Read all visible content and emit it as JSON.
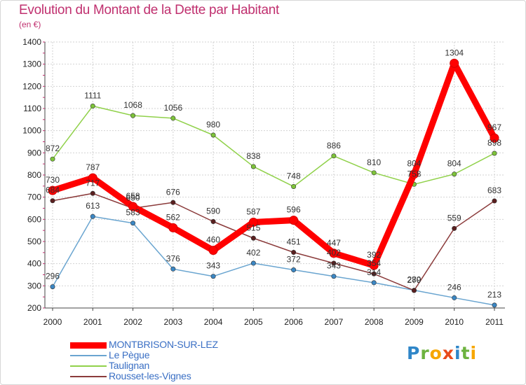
{
  "header": {
    "title": "Evolution du Montant de la Dette par Habitant",
    "unit": "(en €)"
  },
  "colors": {
    "title": "#c0306f",
    "grid": "#d2d2d2",
    "tick": "#222222"
  },
  "logo": {
    "text": "Proxiti",
    "letters": [
      {
        "ch": "P",
        "color": "#2f86c8"
      },
      {
        "ch": "r",
        "color": "#6db33f"
      },
      {
        "ch": "o",
        "color": "#f7a600"
      },
      {
        "ch": "x",
        "color": "#e84a1b"
      },
      {
        "ch": "i",
        "color": "#2f86c8"
      },
      {
        "ch": "t",
        "color": "#6db33f"
      },
      {
        "ch": "i",
        "color": "#f7a600"
      }
    ]
  },
  "chart_data": {
    "type": "line",
    "title": "Evolution du Montant de la Dette par Habitant",
    "ylabel": "(en €)",
    "xlabel": "",
    "ylim": [
      200,
      1400
    ],
    "yticks": [
      200,
      300,
      400,
      500,
      600,
      700,
      800,
      900,
      1000,
      1100,
      1200,
      1300,
      1400
    ],
    "grid": true,
    "legend_position": "bottom-left",
    "x": [
      "2000",
      "2001",
      "2002",
      "2003",
      "2004",
      "2005",
      "2006",
      "2007",
      "2008",
      "2009",
      "2010",
      "2011"
    ],
    "series": [
      {
        "name": "Taulignan",
        "color": "#90d14a",
        "marker_color": "#7ec43a",
        "values": [
          872,
          1111,
          1068,
          1056,
          980,
          838,
          748,
          886,
          810,
          758,
          804,
          898
        ]
      },
      {
        "name": "Le Pègue",
        "color": "#6aa5d0",
        "marker_color": "#3b87c4",
        "values": [
          296,
          613,
          583,
          376,
          343,
          402,
          372,
          343,
          314,
          280,
          246,
          213
        ]
      },
      {
        "name": "Rousset-les-Vignes",
        "color": "#8b3b3b",
        "marker_color": "#5a1f1f",
        "values": [
          684,
          717,
          650,
          676,
          590,
          515,
          451,
          402,
          354,
          279,
          559,
          683
        ]
      },
      {
        "name": "MONTBRISON-SUR-LEZ",
        "color": "#ff0000",
        "marker_color": "#ff0000",
        "values": [
          730,
          787,
          658,
          562,
          460,
          587,
          596,
          447,
          392,
          804,
          1304,
          967
        ]
      }
    ],
    "legend": [
      {
        "name": "MONTBRISON-SUR-LEZ",
        "color": "#ff0000",
        "label_color": "#3a6fc4",
        "thick": true
      },
      {
        "name": "Le Pègue",
        "color": "#6aa5d0",
        "label_color": "#3a6fc4",
        "thick": false
      },
      {
        "name": "Taulignan",
        "color": "#90d14a",
        "label_color": "#3a6fc4",
        "thick": false
      },
      {
        "name": "Rousset-les-Vignes",
        "color": "#8b3b3b",
        "label_color": "#3a6fc4",
        "thick": false
      }
    ]
  }
}
